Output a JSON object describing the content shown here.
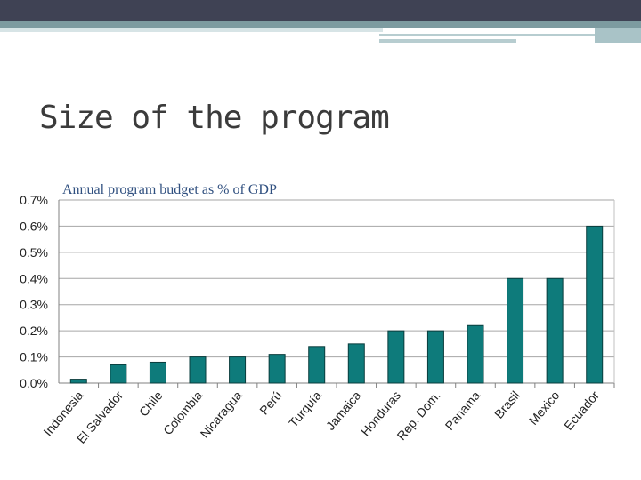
{
  "slide": {
    "title": "Size of the program"
  },
  "colors": {
    "bar": "#0e7b7b",
    "grid": "#a6a6a6",
    "header": "#3f4254"
  },
  "chart_data": {
    "type": "bar",
    "title": "Annual program budget as % of GDP",
    "xlabel": "",
    "ylabel": "",
    "categories": [
      "Indonesia",
      "El Salvador",
      "Chile",
      "Colombia",
      "Nicaragua",
      "Perú",
      "Turquía",
      "Jamaica",
      "Honduras",
      "Rep. Dom.",
      "Panama",
      "Brasil",
      "Mexico",
      "Ecuador"
    ],
    "values": [
      0.015,
      0.07,
      0.08,
      0.1,
      0.1,
      0.11,
      0.14,
      0.15,
      0.2,
      0.2,
      0.22,
      0.4,
      0.4,
      0.6
    ],
    "ylim": [
      0,
      0.7
    ],
    "yticks": [
      0,
      0.1,
      0.2,
      0.3,
      0.4,
      0.5,
      0.6,
      0.7
    ],
    "ytick_labels": [
      "0.0%",
      "0.1%",
      "0.2%",
      "0.3%",
      "0.4%",
      "0.5%",
      "0.6%",
      "0.7%"
    ],
    "grid": true,
    "legend": "none"
  }
}
